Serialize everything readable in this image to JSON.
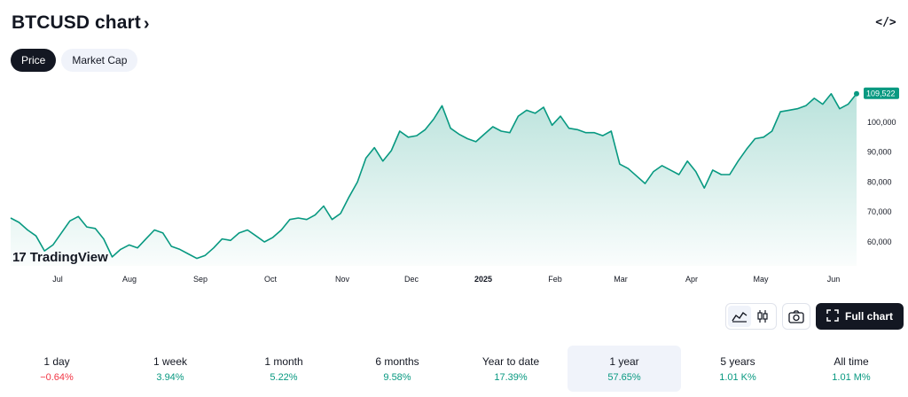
{
  "header": {
    "title": "BTCUSD chart",
    "title_chevron": "›",
    "embed_icon_text": "</>"
  },
  "tabs": [
    {
      "label": "Price",
      "active": true
    },
    {
      "label": "Market Cap",
      "active": false
    }
  ],
  "chart_data": {
    "type": "area",
    "title": "",
    "xlabel": "",
    "ylabel": "",
    "ylim": [
      52000,
      113000
    ],
    "last_value_label": "109,522",
    "color": "#089981",
    "x_ticks": [
      "Jul",
      "Aug",
      "Sep",
      "Oct",
      "Nov",
      "Dec",
      "2025",
      "Feb",
      "Mar",
      "Apr",
      "May",
      "Jun"
    ],
    "y_ticks": [
      "100,000",
      "90,000",
      "80,000",
      "70,000",
      "60,000"
    ],
    "y_tick_values": [
      100000,
      90000,
      80000,
      70000,
      60000
    ],
    "series": [
      {
        "values": [
          68000,
          66500,
          64000,
          62000,
          57000,
          59000,
          63000,
          67000,
          68500,
          65000,
          64500,
          61000,
          55000,
          57500,
          59000,
          58000,
          61000,
          64000,
          63000,
          58500,
          57500,
          56000,
          54500,
          55500,
          58000,
          61000,
          60500,
          63000,
          64000,
          62000,
          60000,
          61500,
          64000,
          67500,
          68000,
          67500,
          69000,
          72000,
          67500,
          69500,
          75000,
          80000,
          88000,
          91500,
          87000,
          90500,
          97000,
          95000,
          95500,
          97500,
          101000,
          105500,
          98000,
          96000,
          94500,
          93500,
          96000,
          98500,
          97000,
          96500,
          102000,
          104000,
          103000,
          105000,
          99000,
          102000,
          98000,
          97500,
          96500,
          96500,
          95500,
          97000,
          86000,
          84500,
          82000,
          79500,
          83500,
          85500,
          84000,
          82500,
          87000,
          83500,
          78000,
          84000,
          82500,
          82500,
          87000,
          91000,
          94500,
          95000,
          97000,
          103500,
          104000,
          104500,
          105500,
          108000,
          106000,
          109500,
          104500,
          106000,
          109522
        ]
      }
    ]
  },
  "branding": {
    "logo_mark": "17",
    "logo_text": "TradingView"
  },
  "toolbar": {
    "line_icon": "area-chart-icon",
    "candle_icon": "candlestick-icon",
    "camera_icon": "camera-icon",
    "fullscreen_icon": "fullscreen-icon",
    "full_chart_label": "Full chart"
  },
  "periods": [
    {
      "name": "1 day",
      "value": "−0.64%",
      "sign": "neg",
      "active": false
    },
    {
      "name": "1 week",
      "value": "3.94%",
      "sign": "pos",
      "active": false
    },
    {
      "name": "1 month",
      "value": "5.22%",
      "sign": "pos",
      "active": false
    },
    {
      "name": "6 months",
      "value": "9.58%",
      "sign": "pos",
      "active": false
    },
    {
      "name": "Year to date",
      "value": "17.39%",
      "sign": "pos",
      "active": false
    },
    {
      "name": "1 year",
      "value": "57.65%",
      "sign": "pos",
      "active": true
    },
    {
      "name": "5 years",
      "value": "1.01 K%",
      "sign": "pos",
      "active": false
    },
    {
      "name": "All time",
      "value": "1.01 M%",
      "sign": "pos",
      "active": false
    }
  ]
}
